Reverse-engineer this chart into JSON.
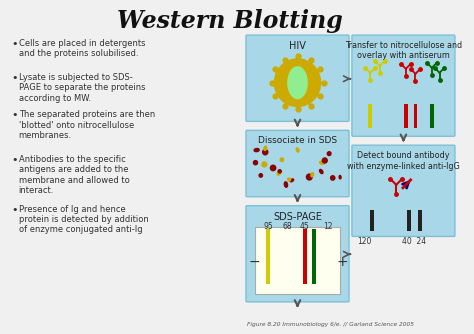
{
  "title": "Western Blotting",
  "background_color": "#f0f0f0",
  "bullet_points": [
    "Cells are placed in detergents\nand the proteins solubilised.",
    "Lysate is subjected to SDS-\nPAGE to separate the proteins\naccording to MW.",
    "The separated proteins are then\n'blotted' onto nitrocellulose\nmembranes.",
    "Antibodies to the specific\nantigens are added to the\nmembrane and allowed to\ninteract.",
    "Presence of Ig and hence\nprotein is detected by addition\nof enzyme conjugated anti-Ig"
  ],
  "panel_bg": "#a8d8e8",
  "panel_labels": [
    "HIV",
    "Dissociate in SDS",
    "SDS-PAGE"
  ],
  "right_panel_labels": [
    "Transfer to nitrocellulose and\noverlay with antiserum",
    "Detect bound antibody\nwith enzyme-linked anti-IgG"
  ],
  "gel_numbers_top": [
    "95",
    "68",
    "45",
    "12"
  ],
  "gel_numbers_bottom_left": "120",
  "gel_numbers_bottom_right": "40  24",
  "caption": "Figure 8.20 Immunobiology 6/e. // Garland Science 2005",
  "antibody_colors": [
    "#cccc00",
    "#cc0000",
    "#006600"
  ],
  "virus_outer_color": "#ccaa00",
  "virus_inner_color": "#90ee90",
  "gel_band_colors": [
    "#cccc00",
    "#cc0000",
    "#006600"
  ],
  "scatter_colors": [
    "#ccaa00",
    "#8b0000"
  ]
}
